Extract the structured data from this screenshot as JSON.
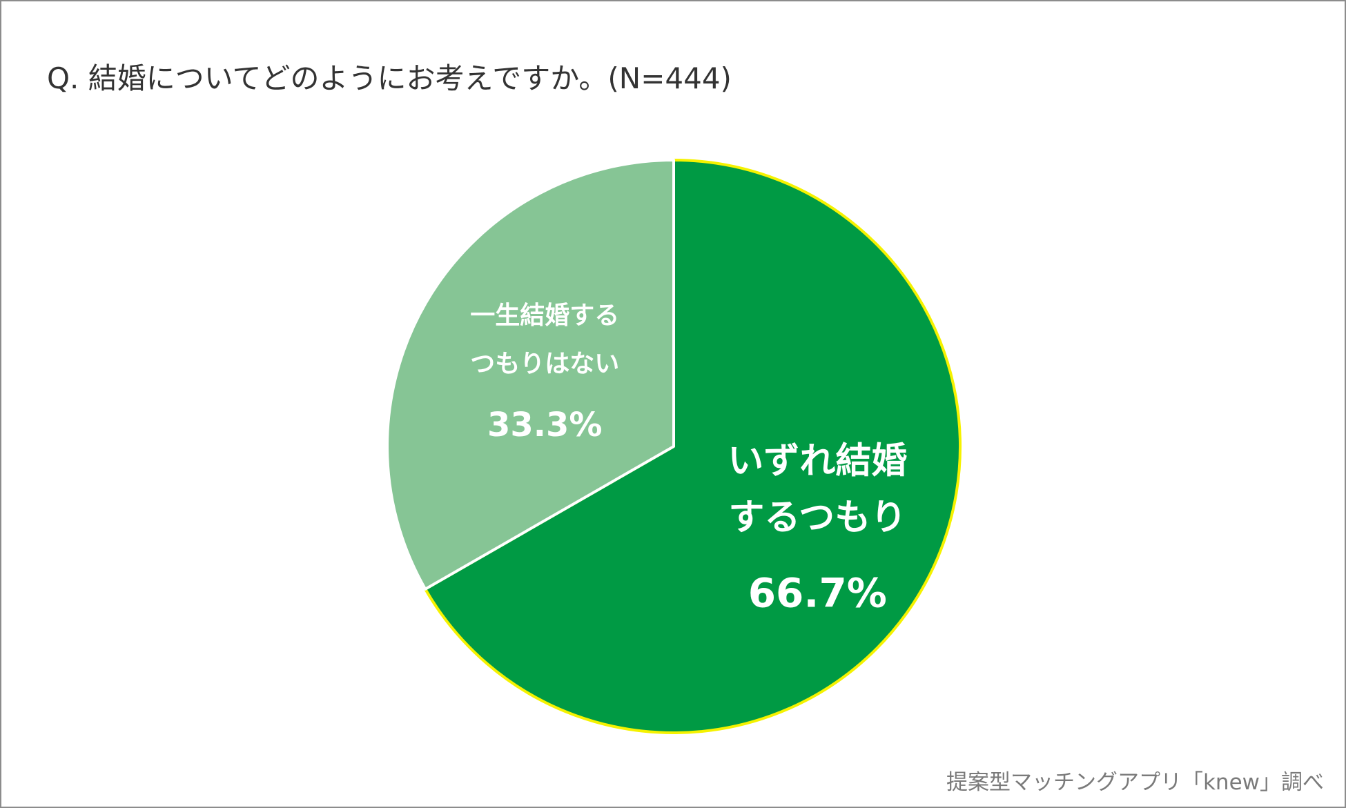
{
  "title": "Q. 結婚についてどのようにお考えですか。(N=444)",
  "source": "提案型マッチングアプリ「knew」調べ",
  "chart_data": {
    "type": "pie",
    "title": "Q. 結婚についてどのようにお考えですか。(N=444)",
    "slices": [
      {
        "label_lines": [
          "いずれ結婚",
          "するつもり"
        ],
        "value": 66.7,
        "value_text": "66.7%",
        "color": "#009a44",
        "edge_color": "#f5f200"
      },
      {
        "label_lines": [
          "一生結婚する",
          "つもりはない"
        ],
        "value": 33.3,
        "value_text": "33.3%",
        "color": "#86c595",
        "edge_color": "#ffffff"
      }
    ],
    "start": "12 o'clock",
    "direction": "clockwise",
    "legend": "none"
  }
}
